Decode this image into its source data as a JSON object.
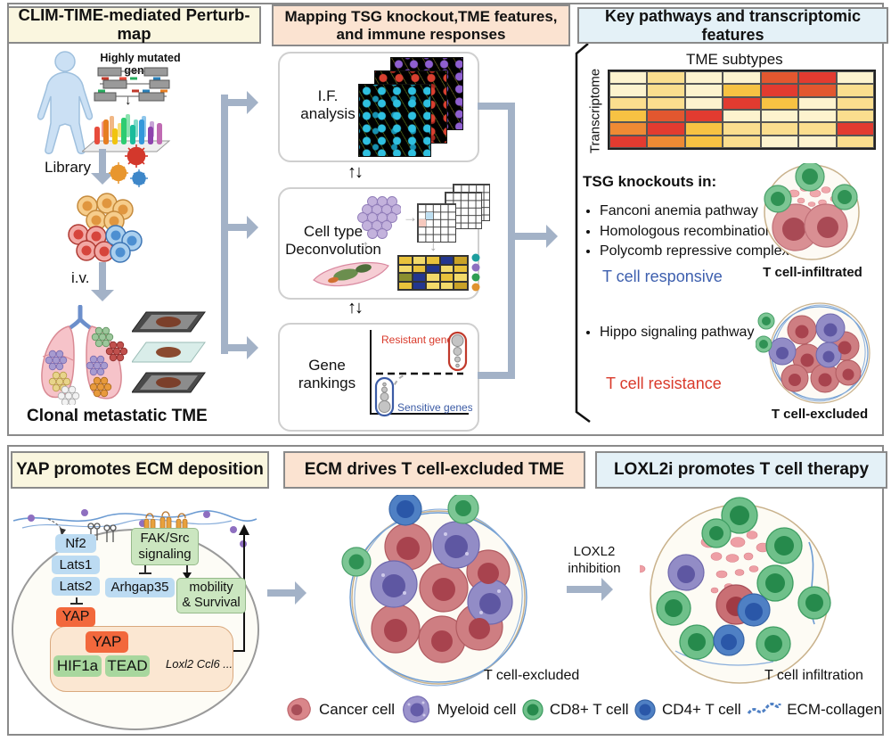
{
  "figure": {
    "top": {
      "left": {
        "title": "CLIM-TIME-mediated Perturb-map",
        "mutated_genes_label": "Highly mutated genes",
        "library_label": "Library",
        "iv_label": "i.v.",
        "caption": "Clonal metastatic TME"
      },
      "middle": {
        "title_line1": "Mapping TSG knockout,TME features,",
        "title_line2": "and immune responses",
        "boxes": [
          {
            "lines": [
              "I.F.",
              "analysis"
            ]
          },
          {
            "lines": [
              "Cell type",
              "Deconvolution"
            ]
          },
          {
            "lines": [
              "Gene",
              "rankings"
            ]
          }
        ],
        "ranking": {
          "resistant": "Resistant genes",
          "sensitive": "Sensitive genes"
        },
        "deconv_cells": [
          [
            "#e9c23b",
            "#f2da6a",
            "#e9c23b",
            "#23368f",
            "#c9a227"
          ],
          [
            "#f2da6a",
            "#e9c23b",
            "#23368f",
            "#f2da6a",
            "#e9c23b"
          ],
          [
            "#8a8f2f",
            "#23368f",
            "#f2da6a",
            "#e9c23b",
            "#f2da6a"
          ],
          [
            "#e9c23b",
            "#23368f",
            "#f2da6a",
            "#f2da6a",
            "#c9a227"
          ]
        ]
      },
      "right": {
        "title": "Key pathways and transcriptomic features",
        "heatmap": {
          "title": "TME subtypes",
          "ylabel": "Transcriptome",
          "cells": [
            [
              "#fdf3ce",
              "#fbde8e",
              "#fdf3ce",
              "#fdf3ce",
              "#e2572f",
              "#e23b30",
              "#fdf3ce"
            ],
            [
              "#fdf3ce",
              "#fbde8e",
              "#fdf3ce",
              "#f7c243",
              "#e23b30",
              "#e2572f",
              "#fbde8e"
            ],
            [
              "#fbde8e",
              "#fbde8e",
              "#fdf3ce",
              "#e23b30",
              "#f7c243",
              "#fdf3ce",
              "#fbde8e"
            ],
            [
              "#f7c243",
              "#e2572f",
              "#e23b30",
              "#fdf3ce",
              "#fdf3ce",
              "#fdf3ce",
              "#fbde8e"
            ],
            [
              "#ee8a34",
              "#e23b30",
              "#f7c243",
              "#fbde8e",
              "#fbde8e",
              "#fbde8e",
              "#e23b30"
            ],
            [
              "#e23b30",
              "#ee8a34",
              "#f7c243",
              "#fbde8e",
              "#fdf3ce",
              "#fdf3ce",
              "#fbde8e"
            ]
          ]
        },
        "knockouts_heading": "TSG knockouts in:",
        "knockouts": [
          "Fanconi anemia pathway",
          "Homologous recombination",
          "Polycomb repressive complex"
        ],
        "responsive_label": "T cell responsive",
        "infiltrated_caption": "T cell-infiltrated",
        "hippo_items": [
          "Hippo signaling pathway"
        ],
        "resistance_label": "T cell resistance",
        "excluded_caption": "T cell-excluded"
      }
    },
    "bottom": {
      "left": {
        "title": "YAP promotes ECM deposition",
        "nodes": {
          "nf2": "Nf2",
          "lats1": "Lats1",
          "lats2": "Lats2",
          "yap": "YAP",
          "fak_line1": "FAK/Src",
          "fak_line2": "signaling",
          "arhgap": "Arhgap35",
          "mobility_line1": "mobility",
          "mobility_line2": "& Survival",
          "yap_nuc": "YAP",
          "hif1a": "HIF1a",
          "tead": "TEAD",
          "target_genes": "Loxl2 Ccl6 ..."
        }
      },
      "middle": {
        "title": "ECM drives T cell-excluded TME",
        "caption": "T cell-excluded"
      },
      "loxl2_line1": "LOXL2",
      "loxl2_line2": "inhibition",
      "right": {
        "title": "LOXL2i promotes T cell therapy",
        "caption": "T cell infiltration"
      },
      "legend": [
        {
          "label": "Cancer cell",
          "color": "#d9868a"
        },
        {
          "label": "Myeloid cell",
          "color": "#9b93cc"
        },
        {
          "label": "CD8+ T cell",
          "color": "#6fc08a"
        },
        {
          "label": "CD4+ T cell",
          "color": "#4f80c4"
        },
        {
          "label": "ECM-collagen",
          "color": "#5b8fc9"
        }
      ]
    },
    "icons": {
      "sync": "↑↓",
      "arrow_down_black": "↓",
      "arrow_right_gray": "→",
      "arrow_down_gray": "↓",
      "arrow_up_gray": "↑"
    },
    "colors": {
      "connector_arrow": "#a3b2c7",
      "header_yellow": "#faf6df",
      "header_peach": "#fbe3d1",
      "header_blue": "#e4f1f7",
      "panel_border": "#8a8a8a",
      "responsive_blue": "#3d5fae",
      "resistance_red": "#d93a2b",
      "sensitive_blue": "#3b5ba5",
      "cancer_cell": "#d9868a",
      "myeloid_cell": "#9b93cc",
      "cd8_cell": "#6fc08a",
      "cd4_cell": "#4f80c4",
      "collagen": "#5b8fc9"
    }
  }
}
